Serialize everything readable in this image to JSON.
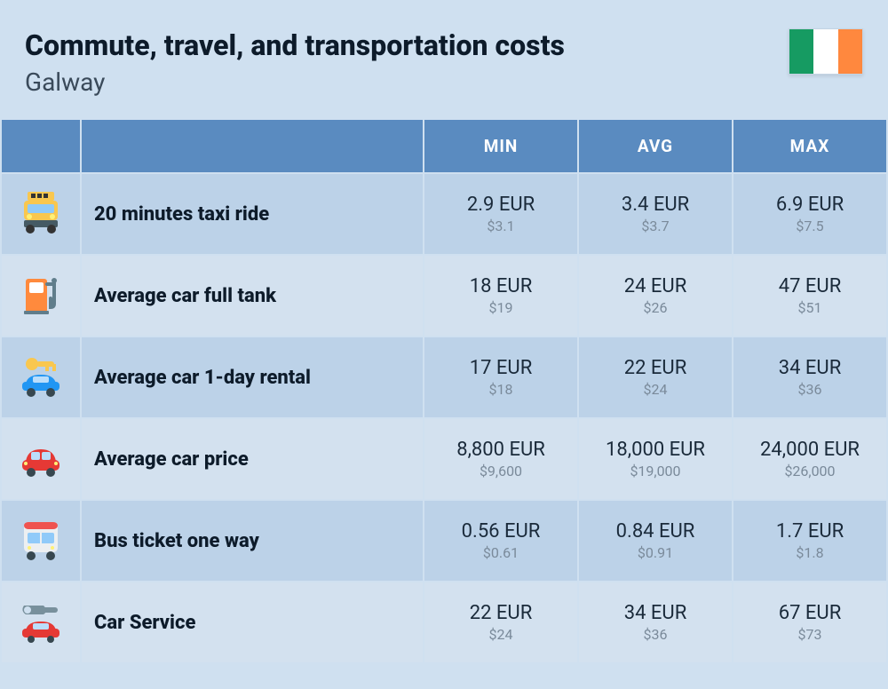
{
  "header": {
    "title": "Commute, travel, and transportation costs",
    "subtitle": "Galway",
    "flag_colors": [
      "#169b62",
      "#ffffff",
      "#ff883e"
    ]
  },
  "columns": {
    "min": "MIN",
    "avg": "AVG",
    "max": "MAX"
  },
  "colors": {
    "page_bg": "#cfe0f0",
    "header_bg": "#5a8bc0",
    "header_text": "#ffffff",
    "row_a_bg": "#bcd2e8",
    "row_b_bg": "#d3e1ef",
    "primary_text": "#1a2a3a",
    "secondary_text": "#7a8a9a",
    "title_text": "#0d1b2a"
  },
  "rows": [
    {
      "icon": "taxi",
      "label": "20 minutes taxi ride",
      "min_eur": "2.9 EUR",
      "min_usd": "$3.1",
      "avg_eur": "3.4 EUR",
      "avg_usd": "$3.7",
      "max_eur": "6.9 EUR",
      "max_usd": "$7.5"
    },
    {
      "icon": "fuel",
      "label": "Average car full tank",
      "min_eur": "18 EUR",
      "min_usd": "$19",
      "avg_eur": "24 EUR",
      "avg_usd": "$26",
      "max_eur": "47 EUR",
      "max_usd": "$51"
    },
    {
      "icon": "rental",
      "label": "Average car 1-day rental",
      "min_eur": "17 EUR",
      "min_usd": "$18",
      "avg_eur": "22 EUR",
      "avg_usd": "$24",
      "max_eur": "34 EUR",
      "max_usd": "$36"
    },
    {
      "icon": "car",
      "label": "Average car price",
      "min_eur": "8,800 EUR",
      "min_usd": "$9,600",
      "avg_eur": "18,000 EUR",
      "avg_usd": "$19,000",
      "max_eur": "24,000 EUR",
      "max_usd": "$26,000"
    },
    {
      "icon": "bus",
      "label": "Bus ticket one way",
      "min_eur": "0.56 EUR",
      "min_usd": "$0.61",
      "avg_eur": "0.84 EUR",
      "avg_usd": "$0.91",
      "max_eur": "1.7 EUR",
      "max_usd": "$1.8"
    },
    {
      "icon": "service",
      "label": "Car Service",
      "min_eur": "22 EUR",
      "min_usd": "$24",
      "avg_eur": "34 EUR",
      "avg_usd": "$36",
      "max_eur": "67 EUR",
      "max_usd": "$73"
    }
  ]
}
